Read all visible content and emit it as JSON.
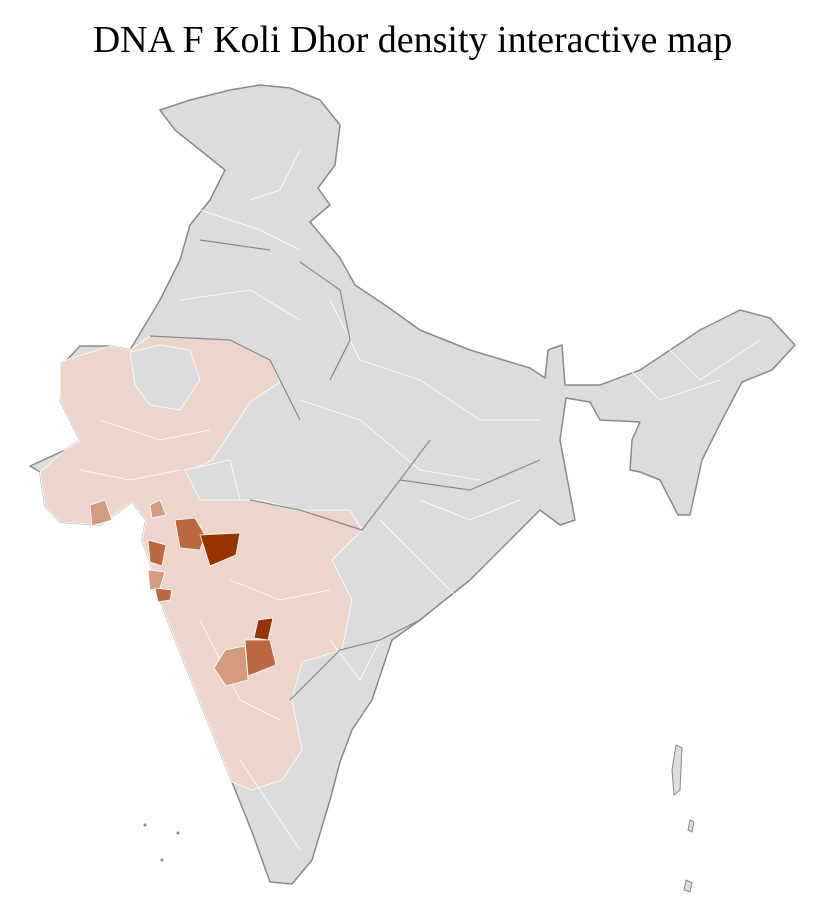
{
  "title": "DNA F Koli Dhor density interactive map",
  "colors": {
    "no_data": "#dcdcdc",
    "state_border": "#8a8a8a",
    "district_border": "#ffffff",
    "density_low": "#ecd6cc",
    "density_medium": "#d49a80",
    "density_high": "#bb6841",
    "density_highest": "#993300"
  }
}
